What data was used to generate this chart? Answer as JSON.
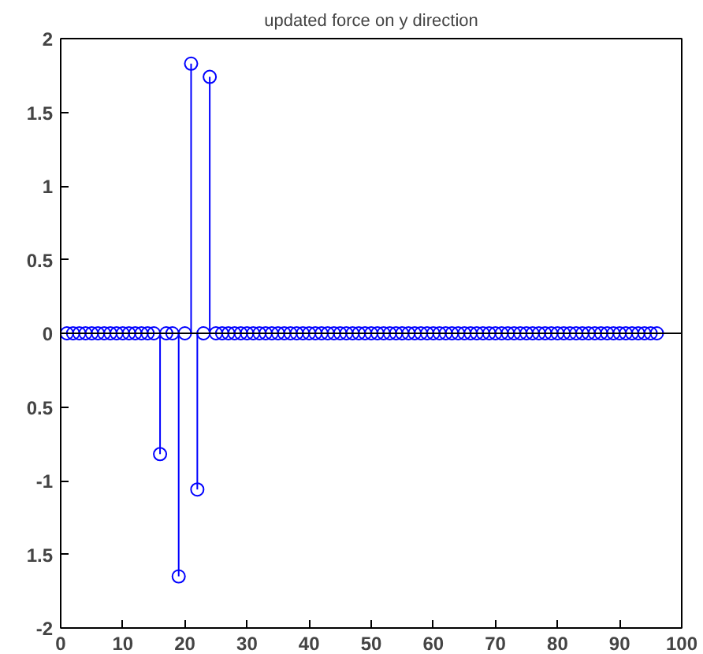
{
  "chart_data": {
    "type": "lollipop",
    "title": "updated force on y direction",
    "x": [
      1,
      2,
      3,
      4,
      5,
      6,
      7,
      8,
      9,
      10,
      11,
      12,
      13,
      14,
      15,
      16,
      17,
      18,
      19,
      20,
      21,
      22,
      23,
      24,
      25,
      26,
      27,
      28,
      29,
      30,
      31,
      32,
      33,
      34,
      35,
      36,
      37,
      38,
      39,
      40,
      41,
      42,
      43,
      44,
      45,
      46,
      47,
      48,
      49,
      50,
      51,
      52,
      53,
      54,
      55,
      56,
      57,
      58,
      59,
      60,
      61,
      62,
      63,
      64,
      65,
      66,
      67,
      68,
      69,
      70,
      71,
      72,
      73,
      74,
      75,
      76,
      77,
      78,
      79,
      80,
      81,
      82,
      83,
      84,
      85,
      86,
      87,
      88,
      89,
      90,
      91,
      92,
      93,
      94,
      95,
      96
    ],
    "series": [
      {
        "color": "#0000ff",
        "values": [
          0,
          0,
          0,
          0,
          0,
          0,
          0,
          0,
          0,
          0,
          0,
          0,
          0,
          0,
          0,
          -0.82,
          0,
          0,
          -1.65,
          0,
          1.83,
          -1.06,
          0,
          1.74,
          0,
          0,
          0,
          0,
          0,
          0,
          0,
          0,
          0,
          0,
          0,
          0,
          0,
          0,
          0,
          0,
          0,
          0,
          0,
          0,
          0,
          0,
          0,
          0,
          0,
          0,
          0,
          0,
          0,
          0,
          0,
          0,
          0,
          0,
          0,
          0,
          0,
          0,
          0,
          0,
          0,
          0,
          0,
          0,
          0,
          0,
          0,
          0,
          0,
          0,
          0,
          0,
          0,
          0,
          0,
          0,
          0,
          0,
          0,
          0,
          0,
          0,
          0,
          0,
          0,
          0,
          0,
          0,
          0,
          0,
          0,
          0
        ]
      }
    ],
    "marker": "circle",
    "xlim": [
      0,
      100
    ],
    "xticks": [
      0,
      10,
      20,
      30,
      40,
      50,
      60,
      70,
      80,
      90,
      100
    ],
    "ylim": [
      -2,
      2
    ],
    "yticks": [
      {
        "value": -2,
        "label": "-2"
      },
      {
        "value": -1.5,
        "label": "1.5"
      },
      {
        "value": -1,
        "label": "-1"
      },
      {
        "value": -0.5,
        "label": "0.5"
      },
      0,
      0.5,
      1,
      1.5,
      2
    ],
    "ref_lines": [
      {
        "axis": "y",
        "value": 0,
        "color": "#000000"
      }
    ],
    "grid": false
  }
}
